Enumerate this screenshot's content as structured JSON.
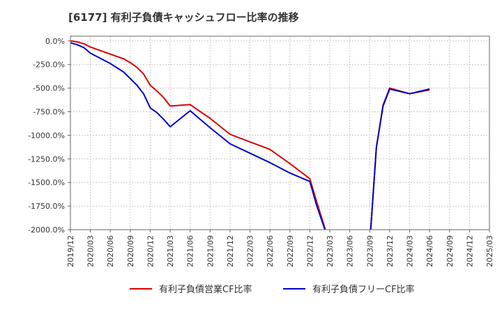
{
  "chart_data": {
    "type": "line",
    "title": "[6177]  有利子負債キャッシュフロー比率の推移",
    "x_ticks": [
      "2019/12",
      "2020/03",
      "2020/06",
      "2020/09",
      "2020/12",
      "2021/03",
      "2021/06",
      "2021/09",
      "2021/12",
      "2022/03",
      "2022/06",
      "2022/09",
      "2022/12",
      "2023/03",
      "2023/06",
      "2023/09",
      "2023/12",
      "2024/03",
      "2024/06",
      "2024/09",
      "2024/12",
      "2025/03"
    ],
    "y_ticks": [
      "0.0%",
      "-250.0%",
      "-500.0%",
      "-750.0%",
      "-1000.0%",
      "-1250.0%",
      "-1500.0%",
      "-1750.0%",
      "-2000.0%"
    ],
    "y_tick_values": [
      0,
      -250,
      -500,
      -750,
      -1000,
      -1250,
      -1500,
      -1750,
      -2000
    ],
    "ylim": [
      -2000,
      50
    ],
    "xlim": [
      "2019/12",
      "2025/03"
    ],
    "grid": true,
    "legend_position": "bottom",
    "series": [
      {
        "name": "有利子負債営業CF比率",
        "color": "#dd0000",
        "points": [
          [
            "2019/12",
            0
          ],
          [
            "2020/01",
            -10
          ],
          [
            "2020/02",
            -30
          ],
          [
            "2020/03",
            -65
          ],
          [
            "2020/06",
            -140
          ],
          [
            "2020/08",
            -190
          ],
          [
            "2020/09",
            -230
          ],
          [
            "2020/10",
            -280
          ],
          [
            "2020/11",
            -350
          ],
          [
            "2020/12",
            -470
          ],
          [
            "2021/01",
            -530
          ],
          [
            "2021/02",
            -600
          ],
          [
            "2021/03",
            -690
          ],
          [
            "2021/06",
            -675
          ],
          [
            "2021/09",
            -820
          ],
          [
            "2021/12",
            -990
          ],
          [
            "2022/03",
            -1070
          ],
          [
            "2022/06",
            -1150
          ],
          [
            "2022/09",
            -1300
          ],
          [
            "2022/12",
            -1460
          ],
          [
            "2023/01",
            -1700
          ],
          [
            "2023/03",
            -2150
          ],
          null,
          [
            "2023/09",
            -2150
          ],
          [
            "2023/10",
            -1130
          ],
          [
            "2023/11",
            -680
          ],
          [
            "2023/12",
            -500
          ],
          [
            "2024/03",
            -560
          ],
          [
            "2024/06",
            -520
          ]
        ]
      },
      {
        "name": "有利子負債フリーCF比率",
        "color": "#0000cc",
        "points": [
          [
            "2019/12",
            -20
          ],
          [
            "2020/01",
            -40
          ],
          [
            "2020/02",
            -70
          ],
          [
            "2020/03",
            -130
          ],
          [
            "2020/06",
            -240
          ],
          [
            "2020/08",
            -330
          ],
          [
            "2020/09",
            -400
          ],
          [
            "2020/10",
            -470
          ],
          [
            "2020/11",
            -560
          ],
          [
            "2020/12",
            -710
          ],
          [
            "2021/01",
            -760
          ],
          [
            "2021/02",
            -830
          ],
          [
            "2021/03",
            -910
          ],
          [
            "2021/06",
            -740
          ],
          [
            "2021/09",
            -920
          ],
          [
            "2021/12",
            -1090
          ],
          [
            "2022/03",
            -1190
          ],
          [
            "2022/06",
            -1290
          ],
          [
            "2022/09",
            -1400
          ],
          [
            "2022/12",
            -1490
          ],
          [
            "2023/01",
            -1740
          ],
          [
            "2023/03",
            -2150
          ],
          null,
          [
            "2023/09",
            -2150
          ],
          [
            "2023/10",
            -1130
          ],
          [
            "2023/11",
            -690
          ],
          [
            "2023/12",
            -510
          ],
          [
            "2024/03",
            -560
          ],
          [
            "2024/06",
            -510
          ]
        ]
      }
    ]
  }
}
